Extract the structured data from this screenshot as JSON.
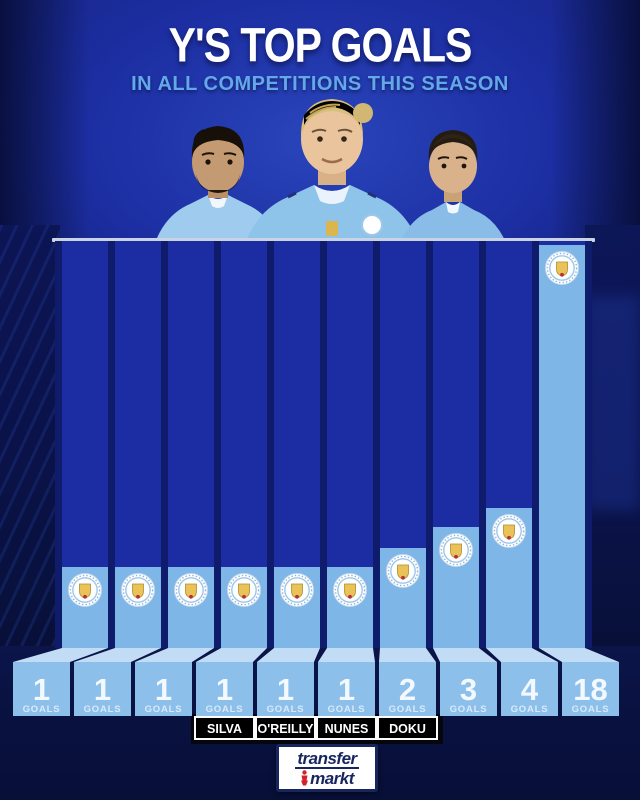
{
  "header": {
    "title": "Y'S TOP GOALS",
    "subtitle": "IN ALL COMPETITIONS THIS SEASON"
  },
  "branding": {
    "logo_line1": "transfer",
    "logo_line2": "markt"
  },
  "colors": {
    "bar_light_blue": "#7db6e7",
    "pedestal_front": "#8cc0eb",
    "pedestal_top": "#c3dcf5",
    "panel_royal_blue": "#1c2da4",
    "panel_divider": "#0f1c6b",
    "background_navy": "#0a1448",
    "subtitle_blue": "#63a8e9",
    "label_box_black": "#05070d",
    "label_text_white": "#ffffff",
    "logo_navy": "#17265e",
    "logo_red": "#d2232a"
  },
  "chart_data": {
    "type": "bar",
    "title": "Y'S TOP GOALS",
    "subtitle": "IN ALL COMPETITIONS THIS SEASON",
    "unit_label": "GOALS",
    "ylim": [
      0,
      18
    ],
    "bar_color": "#7db6e7",
    "badge": "Manchester City club crest at top of every bar",
    "note": "bars sorted ascending left to right; heights stylized staircase, not to scale",
    "categories": [
      "",
      "",
      "",
      "SILVA",
      "O'REILLY",
      "NUNES",
      "DOKU",
      "",
      "",
      ""
    ],
    "values": [
      1,
      1,
      1,
      1,
      1,
      1,
      2,
      3,
      4,
      18
    ],
    "bars": [
      {
        "player": "",
        "goals": 1
      },
      {
        "player": "",
        "goals": 1
      },
      {
        "player": "",
        "goals": 1
      },
      {
        "player": "SILVA",
        "goals": 1
      },
      {
        "player": "O'REILLY",
        "goals": 1
      },
      {
        "player": "NUNES",
        "goals": 1
      },
      {
        "player": "DOKU",
        "goals": 2
      },
      {
        "player": "",
        "goals": 3
      },
      {
        "player": "",
        "goals": 4
      },
      {
        "player": "",
        "goals": 18
      }
    ]
  }
}
